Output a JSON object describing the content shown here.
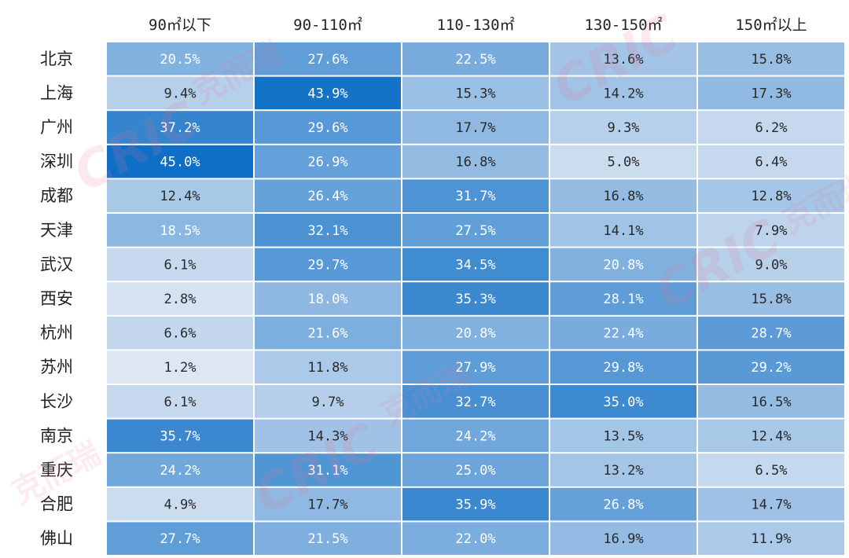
{
  "chart_data": {
    "type": "heatmap",
    "columns": [
      "90㎡以下",
      "90-110㎡",
      "110-130㎡",
      "130-150㎡",
      "150㎡以上"
    ],
    "rows": [
      "北京",
      "上海",
      "广州",
      "深圳",
      "成都",
      "天津",
      "武汉",
      "西安",
      "杭州",
      "苏州",
      "长沙",
      "南京",
      "重庆",
      "合肥",
      "佛山"
    ],
    "values": [
      [
        20.5,
        27.6,
        22.5,
        13.6,
        15.8
      ],
      [
        9.4,
        43.9,
        15.3,
        14.2,
        17.3
      ],
      [
        37.2,
        29.6,
        17.7,
        9.3,
        6.2
      ],
      [
        45.0,
        26.9,
        16.8,
        5.0,
        6.4
      ],
      [
        12.4,
        26.4,
        31.7,
        16.8,
        12.8
      ],
      [
        18.5,
        32.1,
        27.5,
        14.1,
        7.9
      ],
      [
        6.1,
        29.7,
        34.5,
        20.8,
        9.0
      ],
      [
        2.8,
        18.0,
        35.3,
        28.1,
        15.8
      ],
      [
        6.6,
        21.6,
        20.8,
        22.4,
        28.7
      ],
      [
        1.2,
        11.8,
        27.9,
        29.8,
        29.2
      ],
      [
        6.1,
        9.7,
        32.7,
        35.0,
        16.5
      ],
      [
        35.7,
        14.3,
        24.2,
        13.5,
        12.4
      ],
      [
        24.2,
        31.1,
        25.0,
        13.2,
        6.5
      ],
      [
        4.9,
        17.7,
        35.9,
        26.8,
        14.7
      ],
      [
        27.7,
        21.5,
        22.0,
        16.9,
        11.9
      ]
    ],
    "cell_labels": [
      [
        "20.5%",
        "27.6%",
        "22.5%",
        "13.6%",
        "15.8%"
      ],
      [
        "9.4%",
        "43.9%",
        "15.3%",
        "14.2%",
        "17.3%"
      ],
      [
        "37.2%",
        "29.6%",
        "17.7%",
        "9.3%",
        "6.2%"
      ],
      [
        "45.0%",
        "26.9%",
        "16.8%",
        "5.0%",
        "6.4%"
      ],
      [
        "12.4%",
        "26.4%",
        "31.7%",
        "16.8%",
        "12.8%"
      ],
      [
        "18.5%",
        "32.1%",
        "27.5%",
        "14.1%",
        "7.9%"
      ],
      [
        "6.1%",
        "29.7%",
        "34.5%",
        "20.8%",
        "9.0%"
      ],
      [
        "2.8%",
        "18.0%",
        "35.3%",
        "28.1%",
        "15.8%"
      ],
      [
        "6.6%",
        "21.6%",
        "20.8%",
        "22.4%",
        "28.7%"
      ],
      [
        "1.2%",
        "11.8%",
        "27.9%",
        "29.8%",
        "29.2%"
      ],
      [
        "6.1%",
        "9.7%",
        "32.7%",
        "35.0%",
        "16.5%"
      ],
      [
        "35.7%",
        "14.3%",
        "24.2%",
        "13.5%",
        "12.4%"
      ],
      [
        "24.2%",
        "31.1%",
        "25.0%",
        "13.2%",
        "6.5%"
      ],
      [
        "4.9%",
        "17.7%",
        "35.9%",
        "26.8%",
        "14.7%"
      ],
      [
        "27.7%",
        "21.5%",
        "22.0%",
        "16.9%",
        "11.9%"
      ]
    ],
    "color_scale": {
      "low": "#dde6f3",
      "high": "#0f6fc6"
    },
    "grid": false,
    "legend": "none"
  },
  "watermark": {
    "latin_text": "CRIC",
    "cn_text": "克而瑞",
    "color": "#e8789a"
  }
}
